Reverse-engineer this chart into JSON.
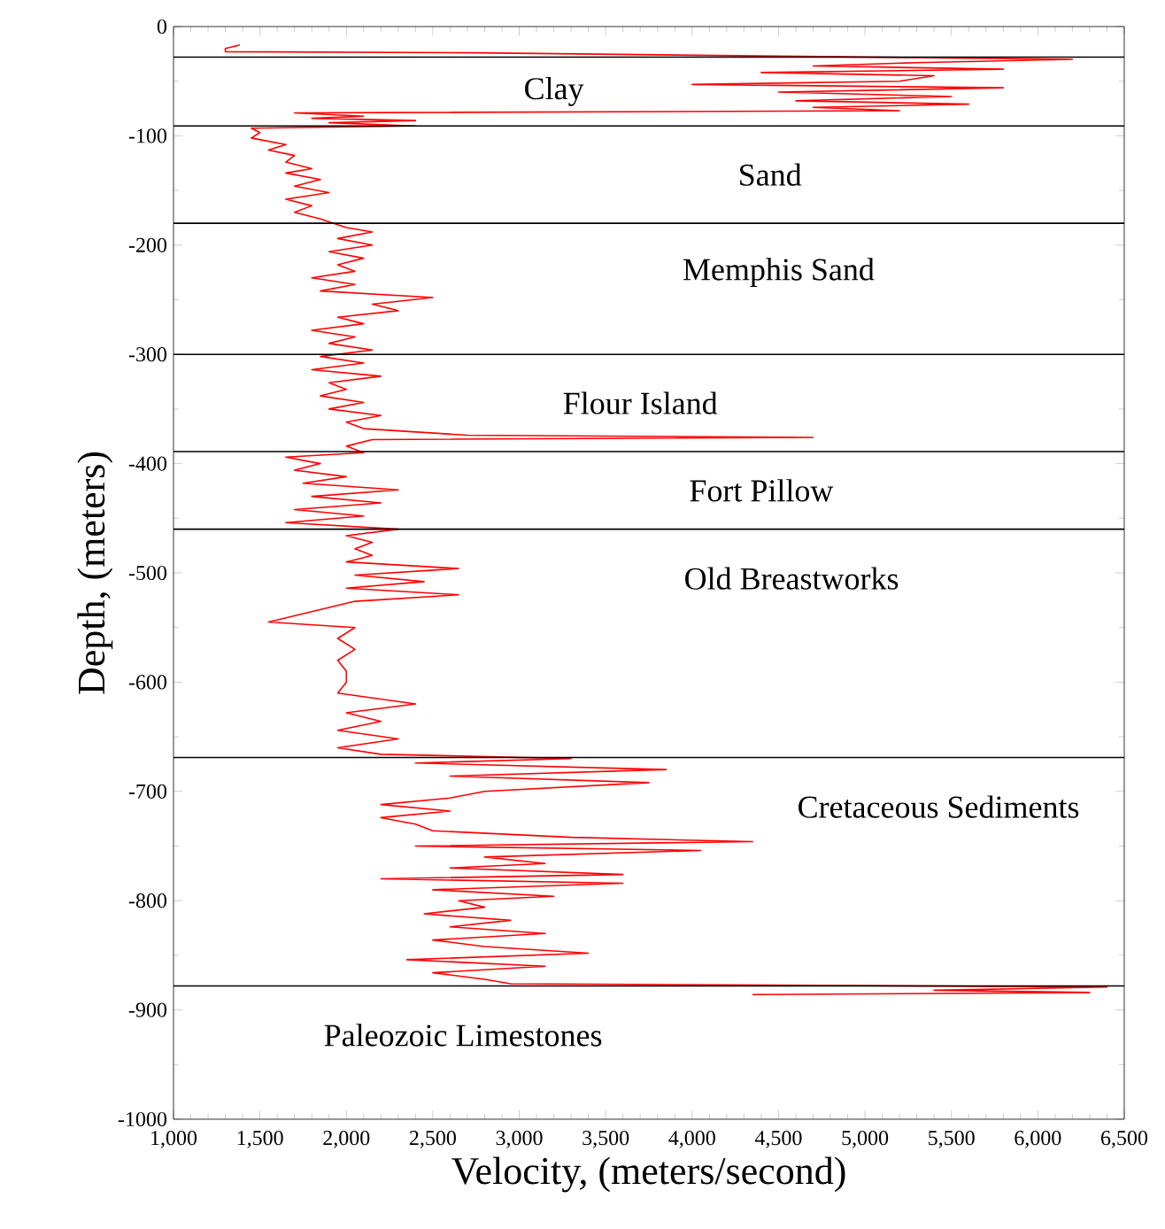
{
  "chart_data": {
    "type": "line",
    "xlabel": "Velocity, (meters/second)",
    "ylabel": "Depth, (meters)",
    "xlim": [
      1000,
      6500
    ],
    "ylim": [
      -1000,
      0
    ],
    "xticks": [
      {
        "value": 1000,
        "label": "1,000"
      },
      {
        "value": 1500,
        "label": "1,500"
      },
      {
        "value": 2000,
        "label": "2,000"
      },
      {
        "value": 2500,
        "label": "2,500"
      },
      {
        "value": 3000,
        "label": "3,000"
      },
      {
        "value": 3500,
        "label": "3,500"
      },
      {
        "value": 4000,
        "label": "4,000"
      },
      {
        "value": 4500,
        "label": "4,500"
      },
      {
        "value": 5000,
        "label": "5,000"
      },
      {
        "value": 5500,
        "label": "5,500"
      },
      {
        "value": 6000,
        "label": "6,000"
      },
      {
        "value": 6500,
        "label": "6,500"
      }
    ],
    "yticks": [
      0,
      -100,
      -200,
      -300,
      -400,
      -500,
      -600,
      -700,
      -800,
      -900,
      -1000
    ],
    "grid": false,
    "series": [
      {
        "color": "#ff0000",
        "x": [
          1350,
          1380,
          1300,
          1300,
          2750,
          6200,
          5300,
          4700,
          5800,
          4400,
          5400,
          5200,
          4000,
          5800,
          4500,
          5500,
          4600,
          5600,
          4700,
          5200,
          1700,
          2100,
          1800,
          2400,
          1900,
          2400,
          1450,
          1500,
          1450,
          1650,
          1550,
          1700,
          1650,
          1800,
          1650,
          1850,
          1700,
          1900,
          1650,
          1800,
          1700,
          1850,
          2000,
          2150,
          1950,
          2150,
          1900,
          2100,
          1950,
          2050,
          1800,
          2050,
          1850,
          2500,
          2150,
          2300,
          1950,
          2100,
          1800,
          2050,
          1900,
          2150,
          1850,
          2100,
          1800,
          2200,
          1900,
          2000,
          1850,
          2100,
          1900,
          2200,
          2000,
          2100,
          2700,
          4700,
          2150,
          2000,
          2100,
          1650,
          1850,
          1700,
          2000,
          1750,
          2300,
          1800,
          2200,
          1700,
          2100,
          1650,
          2300,
          2000,
          2150,
          2050,
          2150,
          2000,
          2650,
          2050,
          2450,
          2000,
          2650,
          2050,
          1550,
          2050,
          1950,
          2050,
          1950,
          2000,
          2000,
          1950,
          2400,
          2000,
          2200,
          1950,
          2300,
          1950,
          2200,
          3300,
          2400,
          3850,
          2600,
          3750,
          2800,
          2600,
          2200,
          2600,
          2200,
          2400,
          2500,
          3300,
          4350,
          2400,
          4050,
          2800,
          3150,
          2600,
          3600,
          2200,
          3600,
          2500,
          3200,
          2650,
          2800,
          2450,
          2950,
          2600,
          3150,
          2500,
          2800,
          3400,
          2350,
          3150,
          2500,
          2800,
          2950,
          6400,
          5400,
          6300,
          4350
        ],
        "values": [
          -18,
          -17,
          -20,
          -23,
          -24,
          -30,
          -33,
          -36,
          -39,
          -42,
          -45,
          -50,
          -53,
          -56,
          -60,
          -64,
          -68,
          -71,
          -74,
          -77,
          -79,
          -82,
          -84,
          -86,
          -88,
          -91,
          -93,
          -97,
          -102,
          -108,
          -113,
          -118,
          -124,
          -130,
          -134,
          -140,
          -146,
          -152,
          -158,
          -164,
          -170,
          -176,
          -184,
          -188,
          -194,
          -200,
          -206,
          -212,
          -218,
          -224,
          -230,
          -236,
          -242,
          -248,
          -254,
          -260,
          -266,
          -272,
          -278,
          -284,
          -290,
          -296,
          -302,
          -308,
          -314,
          -320,
          -326,
          -332,
          -338,
          -344,
          -350,
          -356,
          -362,
          -368,
          -374,
          -376,
          -378,
          -384,
          -390,
          -394,
          -400,
          -406,
          -412,
          -418,
          -424,
          -430,
          -436,
          -442,
          -448,
          -454,
          -460,
          -466,
          -472,
          -478,
          -484,
          -490,
          -496,
          -502,
          -508,
          -514,
          -520,
          -526,
          -545,
          -550,
          -560,
          -570,
          -580,
          -590,
          -600,
          -610,
          -620,
          -628,
          -636,
          -644,
          -652,
          -660,
          -666,
          -670,
          -674,
          -680,
          -686,
          -692,
          -700,
          -706,
          -712,
          -718,
          -724,
          -730,
          -736,
          -742,
          -746,
          -750,
          -754,
          -760,
          -766,
          -770,
          -776,
          -780,
          -784,
          -790,
          -796,
          -800,
          -806,
          -812,
          -818,
          -824,
          -830,
          -836,
          -842,
          -848,
          -854,
          -860,
          -866,
          -872,
          -876,
          -879,
          -882,
          -884,
          -886
        ]
      }
    ],
    "ref_lines": [
      {
        "axis": "y",
        "value": -28,
        "color": "#000000",
        "label": "Clay"
      },
      {
        "axis": "y",
        "value": -91,
        "color": "#000000",
        "label": "Sand"
      },
      {
        "axis": "y",
        "value": -180,
        "color": "#000000",
        "label": "Memphis Sand"
      },
      {
        "axis": "y",
        "value": -300,
        "color": "#000000",
        "label": "Flour Island"
      },
      {
        "axis": "y",
        "value": -389,
        "color": "#000000",
        "label": "Fort Pillow"
      },
      {
        "axis": "y",
        "value": -460,
        "color": "#000000",
        "label": "Old Breastworks"
      },
      {
        "axis": "y",
        "value": -669,
        "color": "#000000",
        "label": "Cretaceous Sediments"
      },
      {
        "axis": "y",
        "value": -878,
        "color": "#000000",
        "label": "Paleozoic Limestones"
      }
    ]
  }
}
